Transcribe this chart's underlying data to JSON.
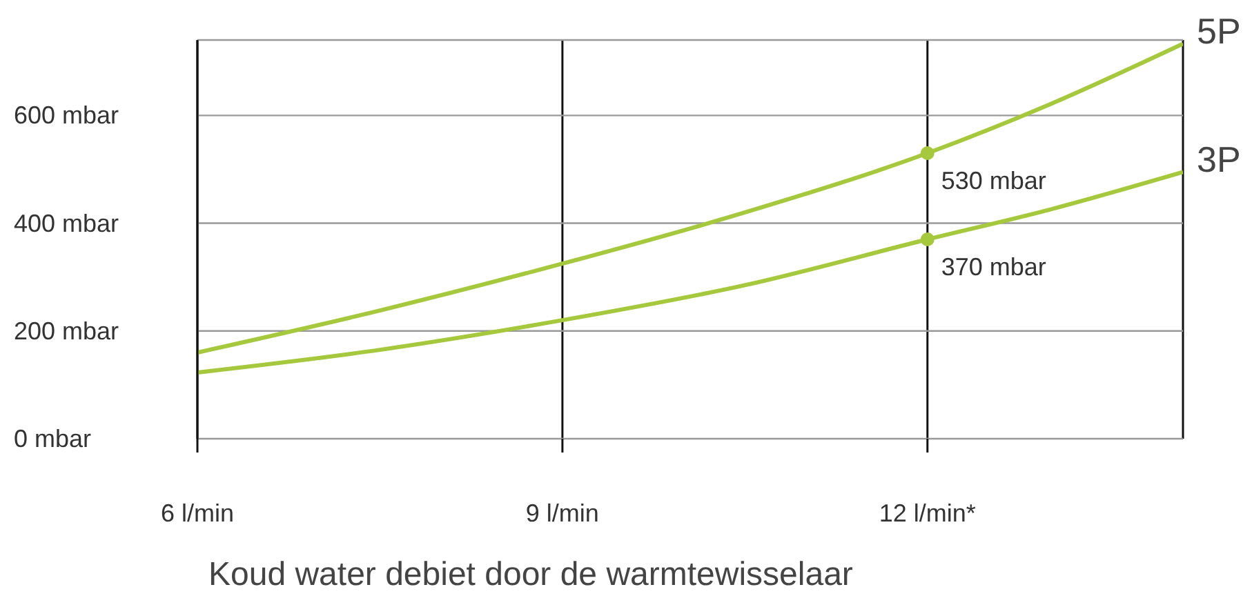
{
  "chart_data": {
    "type": "line",
    "xlabel": "Koud water debiet door de warmtewisselaar",
    "x": [
      6,
      7.5,
      9,
      10.5,
      12,
      13,
      14.1
    ],
    "series": [
      {
        "name": "5P",
        "color": "#a5c83c",
        "values": [
          160,
          238,
          325,
          420,
          530,
          620,
          733
        ]
      },
      {
        "name": "3P",
        "color": "#a5c83c",
        "values": [
          123,
          165,
          220,
          285,
          370,
          425,
          495
        ]
      },
      {
        "type": "scatter",
        "marker": "circle",
        "color": "#a5c83c",
        "x": [
          12,
          12
        ],
        "values": [
          530,
          370
        ]
      }
    ],
    "xlim": [
      6,
      14.1
    ],
    "xticks": [
      {
        "value": 6,
        "label": "6 l/min"
      },
      {
        "value": 9,
        "label": "9 l/min"
      },
      {
        "value": 12,
        "label": "12 l/min*"
      }
    ],
    "ylim": [
      0,
      740
    ],
    "yticks": [
      {
        "value": 0,
        "label": "0 mbar"
      },
      {
        "value": 200,
        "label": "200 mbar"
      },
      {
        "value": 400,
        "label": "400 mbar"
      },
      {
        "value": 600,
        "label": "600 mbar"
      }
    ],
    "grid": true,
    "marker": "none",
    "line_style": "solid",
    "annotations": [
      {
        "text": "530 mbar",
        "x": 12,
        "y": 530
      },
      {
        "text": "370 mbar",
        "x": 12,
        "y": 370
      }
    ]
  }
}
